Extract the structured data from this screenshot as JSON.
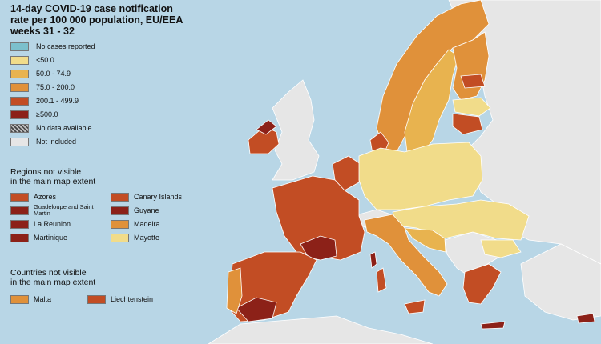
{
  "title_line1": "14-day COVID-19 case notification",
  "title_line2": "rate per 100 000 population, EU/EEA",
  "title_line3": "weeks 31 - 32",
  "legend": [
    {
      "label": "No cases reported",
      "color": "#7cc0cc"
    },
    {
      "label": "<50.0",
      "color": "#f1dc8a"
    },
    {
      "label": "50.0 - 74.9",
      "color": "#e8b34f"
    },
    {
      "label": "75.0 - 200.0",
      "color": "#e0913a"
    },
    {
      "label": "200.1 - 499.9",
      "color": "#c24d24"
    },
    {
      "label": "≥500.0",
      "color": "#8c2118"
    },
    {
      "label": "No data available",
      "color": "hatched"
    },
    {
      "label": "Not included",
      "color": "#e6e6e6"
    }
  ],
  "regions_title_line1": "Regions not visible",
  "regions_title_line2": "in the main map extent",
  "regions": [
    {
      "label": "Azores",
      "color": "#c24d24"
    },
    {
      "label": "Canary Islands",
      "color": "#c24d24"
    },
    {
      "label": "Guadeloupe and Saint Martin",
      "color": "#8c2118"
    },
    {
      "label": "Guyane",
      "color": "#8c2118"
    },
    {
      "label": "La Reunion",
      "color": "#8c2118"
    },
    {
      "label": "Madeira",
      "color": "#e0913a"
    },
    {
      "label": "Martinique",
      "color": "#8c2118"
    },
    {
      "label": "Mayotte",
      "color": "#f1dc8a"
    }
  ],
  "countries_title_line1": "Countries not visible",
  "countries_title_line2": "in the main map extent",
  "countries": [
    {
      "label": "Malta",
      "color": "#e0913a"
    },
    {
      "label": "Liechtenstein",
      "color": "#c24d24"
    }
  ],
  "colors": {
    "sea": "#b8d6e6",
    "non_eu_land": "#e6e6e6"
  }
}
